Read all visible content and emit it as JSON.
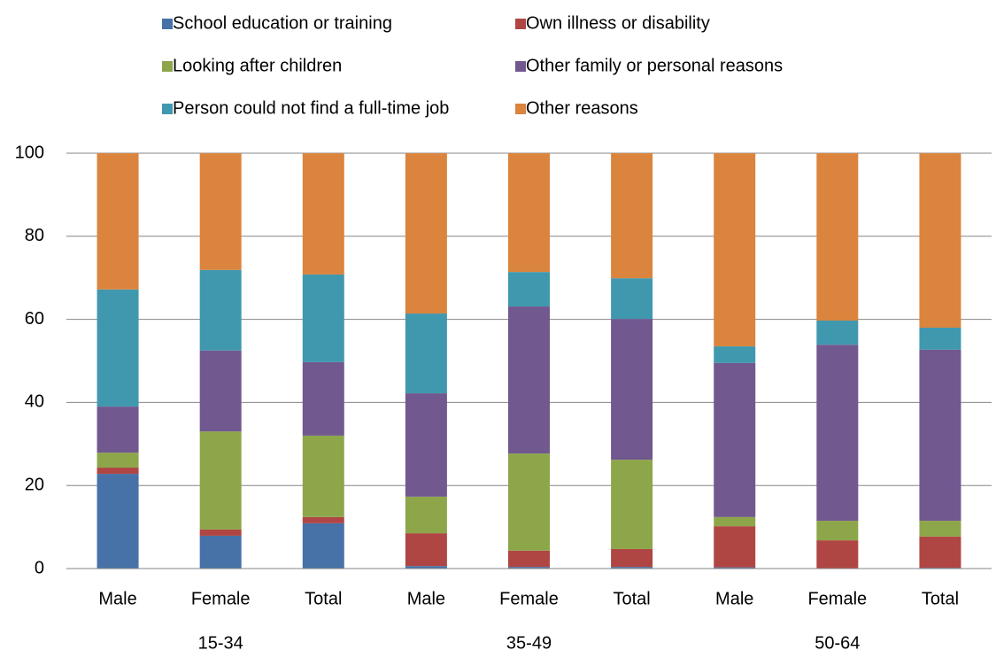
{
  "chart_data": {
    "type": "stacked_bar",
    "categories": [
      "Male",
      "Female",
      "Total",
      "Male",
      "Female",
      "Total",
      "Male",
      "Female",
      "Total"
    ],
    "groups": [
      "15-34",
      "35-49",
      "50-64"
    ],
    "series": [
      {
        "name": "School education or training",
        "color": "#4672a8",
        "values": [
          22.8,
          7.9,
          10.9,
          0.6,
          0.4,
          0.4,
          0.3,
          0.1,
          0.2
        ]
      },
      {
        "name": "Own illness or disability",
        "color": "#b04644",
        "values": [
          1.5,
          1.5,
          1.5,
          7.9,
          3.9,
          4.3,
          9.9,
          6.7,
          7.5
        ]
      },
      {
        "name": "Looking after children",
        "color": "#8da64a",
        "values": [
          3.6,
          23.6,
          19.6,
          8.8,
          23.4,
          21.5,
          2.2,
          4.7,
          3.8
        ]
      },
      {
        "name": "Other family or personal reasons",
        "color": "#71588f",
        "values": [
          11.1,
          19.5,
          17.7,
          24.9,
          35.4,
          33.9,
          37.1,
          42.4,
          41.2
        ]
      },
      {
        "name": "Person could not find a full-time job",
        "color": "#4098af",
        "values": [
          28.2,
          19.4,
          21.1,
          19.2,
          8.3,
          9.8,
          4.0,
          5.8,
          5.3
        ]
      },
      {
        "name": "Other reasons",
        "color": "#db843d",
        "values": [
          32.8,
          28.1,
          29.2,
          38.6,
          28.6,
          30.1,
          46.5,
          40.3,
          42.0
        ]
      }
    ],
    "ylim": [
      0,
      100
    ],
    "yticks": [
      0,
      20,
      40,
      60,
      80,
      100
    ],
    "grid": true
  }
}
